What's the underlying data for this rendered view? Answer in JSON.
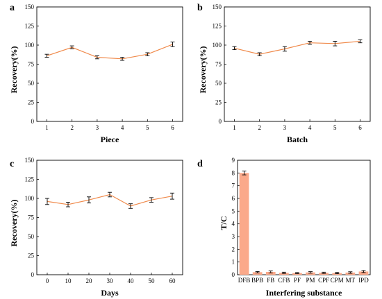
{
  "colors": {
    "line": "#f08a4b",
    "bar": "#fba98a",
    "err": "#000000"
  },
  "chart_data": [
    {
      "type": "line",
      "panel_label": "a",
      "xlabel": "Piece",
      "ylabel": "Recovery(%)",
      "x": [
        1,
        2,
        3,
        4,
        5,
        6
      ],
      "x_ticks": [
        "1",
        "2",
        "3",
        "4",
        "5",
        "6"
      ],
      "xlim": [
        0.6,
        6.4
      ],
      "ylim": [
        0,
        150
      ],
      "y_ticks": [
        "0",
        "25",
        "50",
        "75",
        "100",
        "125",
        "150"
      ],
      "series": [
        {
          "values": [
            86,
            97,
            84,
            82,
            88,
            101
          ],
          "errors": [
            2,
            2,
            2,
            2,
            2,
            3
          ]
        }
      ]
    },
    {
      "type": "line",
      "panel_label": "b",
      "xlabel": "Batch",
      "ylabel": "Recovery(%)",
      "x": [
        1,
        2,
        3,
        4,
        5,
        6
      ],
      "x_ticks": [
        "1",
        "2",
        "3",
        "4",
        "5",
        "6"
      ],
      "xlim": [
        0.6,
        6.4
      ],
      "ylim": [
        0,
        150
      ],
      "y_ticks": [
        "0",
        "25",
        "50",
        "75",
        "100",
        "125",
        "150"
      ],
      "series": [
        {
          "values": [
            96,
            88,
            95,
            103,
            102,
            105
          ],
          "errors": [
            2,
            2,
            3,
            2,
            3,
            2
          ]
        }
      ]
    },
    {
      "type": "line",
      "panel_label": "c",
      "xlabel": "Days",
      "ylabel": "Recovery(%)",
      "x": [
        0,
        10,
        20,
        30,
        40,
        50,
        60
      ],
      "x_ticks": [
        "0",
        "10",
        "20",
        "30",
        "40",
        "50",
        "60"
      ],
      "xlim": [
        -5,
        65
      ],
      "ylim": [
        0,
        150
      ],
      "y_ticks": [
        "0",
        "25",
        "50",
        "75",
        "100",
        "125",
        "150"
      ],
      "series": [
        {
          "values": [
            96,
            92,
            98,
            105,
            90,
            98,
            103
          ],
          "errors": [
            4,
            3,
            4,
            3,
            3,
            3,
            4
          ]
        }
      ]
    },
    {
      "type": "bar",
      "panel_label": "d",
      "xlabel": "Interfering substance",
      "ylabel": "T/C",
      "categories": [
        "DFB",
        "BPB",
        "FB",
        "CFB",
        "PF",
        "PM",
        "CPF",
        "CPM",
        "MT",
        "IPD"
      ],
      "values": [
        8.0,
        0.2,
        0.22,
        0.15,
        0.13,
        0.18,
        0.15,
        0.13,
        0.17,
        0.25
      ],
      "errors": [
        0.15,
        0.05,
        0.08,
        0.05,
        0.04,
        0.06,
        0.05,
        0.05,
        0.06,
        0.08
      ],
      "ylim": [
        0,
        9
      ],
      "y_ticks": [
        "0",
        "1",
        "2",
        "3",
        "4",
        "5",
        "6",
        "7",
        "8",
        "9"
      ]
    }
  ]
}
